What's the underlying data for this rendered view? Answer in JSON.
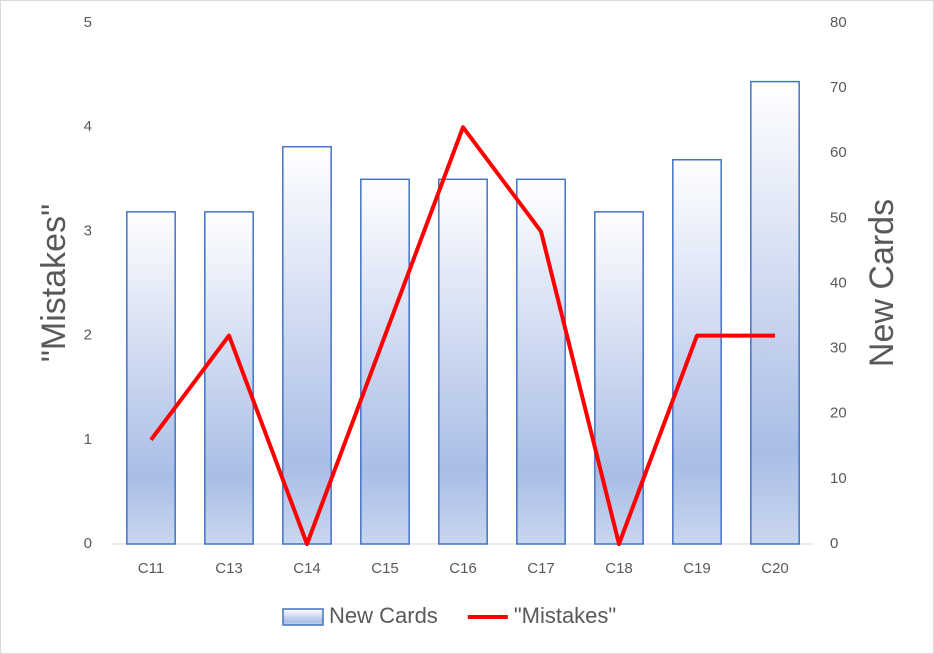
{
  "chart_data": {
    "type": "combo",
    "categories": [
      "C11",
      "C13",
      "C14",
      "C15",
      "C16",
      "C17",
      "C18",
      "C19",
      "C20"
    ],
    "series": [
      {
        "name": "New Cards",
        "type": "bar",
        "axis": "y2",
        "color": "#4472c4",
        "values": [
          51,
          51,
          61,
          56,
          56,
          56,
          51,
          59,
          71
        ]
      },
      {
        "name": "\"Mistakes\"",
        "type": "line",
        "axis": "y",
        "color": "#ff0000",
        "values": [
          1,
          2,
          0,
          2,
          4,
          3,
          0,
          2,
          2
        ]
      }
    ],
    "ylabel": "\"Mistakes\"",
    "y2label": "New Cards",
    "ylim": [
      0,
      5
    ],
    "yticks": [
      0,
      1,
      2,
      3,
      4,
      5
    ],
    "y2lim": [
      0,
      80
    ],
    "y2ticks": [
      0,
      10,
      20,
      30,
      40,
      50,
      60,
      70,
      80
    ],
    "grid": false,
    "legend": "bottom"
  }
}
